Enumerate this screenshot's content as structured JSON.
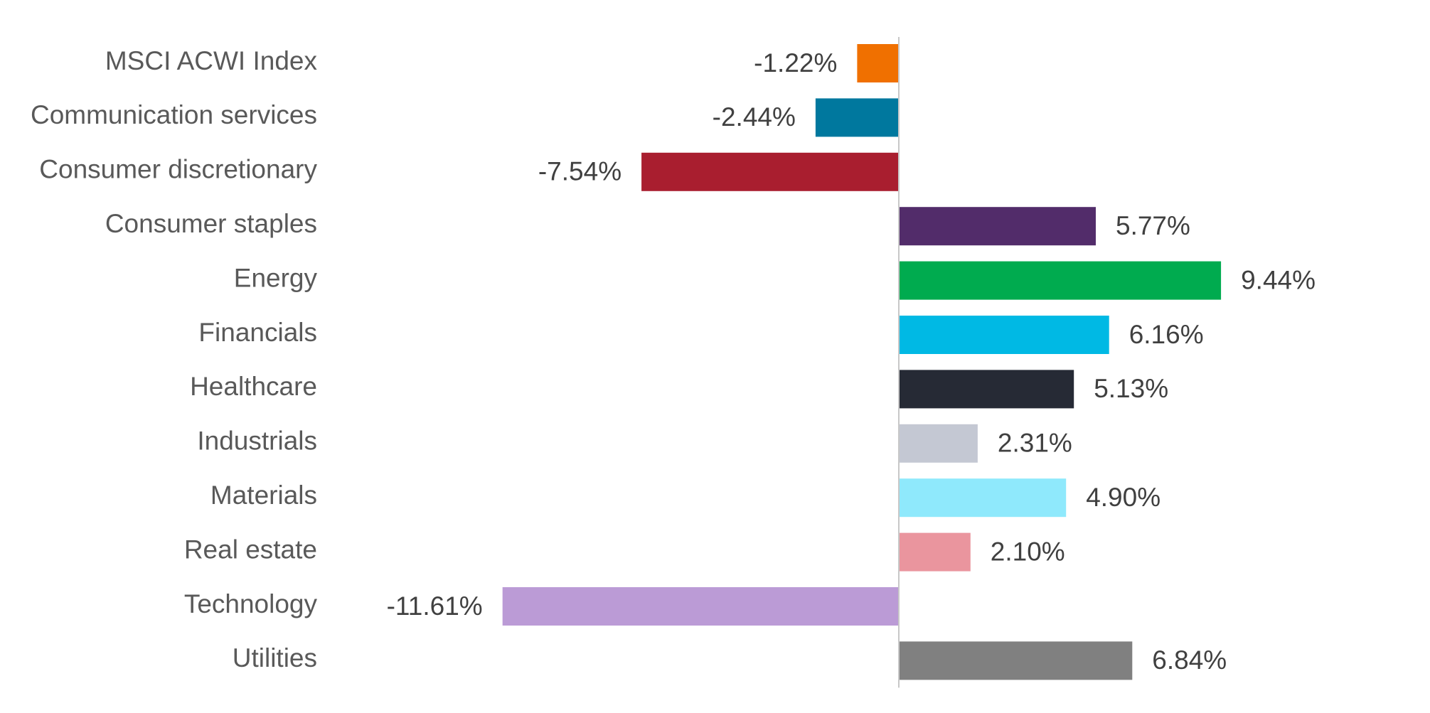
{
  "chart_data": {
    "type": "bar",
    "orientation": "horizontal",
    "title": "",
    "xlabel": "",
    "ylabel": "",
    "value_format": "percent",
    "grid": false,
    "legend": "none",
    "categories": [
      "MSCI ACWI Index",
      "Communication services",
      "Consumer discretionary",
      "Consumer staples",
      "Energy",
      "Financials",
      "Healthcare",
      "Industrials",
      "Materials",
      "Real estate",
      "Technology",
      "Utilities"
    ],
    "values": [
      -1.22,
      -2.44,
      -7.54,
      5.77,
      9.44,
      6.16,
      5.13,
      2.31,
      4.9,
      2.1,
      -11.61,
      6.84
    ],
    "value_labels": [
      "-1.22%",
      "-2.44%",
      "-7.54%",
      "5.77%",
      "9.44%",
      "6.16%",
      "5.13%",
      "2.31%",
      "4.90%",
      "2.10%",
      "-11.61%",
      "6.84%"
    ],
    "colors": [
      "#F07000",
      "#00789E",
      "#A91E2F",
      "#522C6A",
      "#00AB4F",
      "#00B9E4",
      "#262A35",
      "#C4C8D3",
      "#8FE9FC",
      "#EA959E",
      "#BB9BD6",
      "#808080"
    ],
    "axis_color": "#C8C8C8"
  }
}
